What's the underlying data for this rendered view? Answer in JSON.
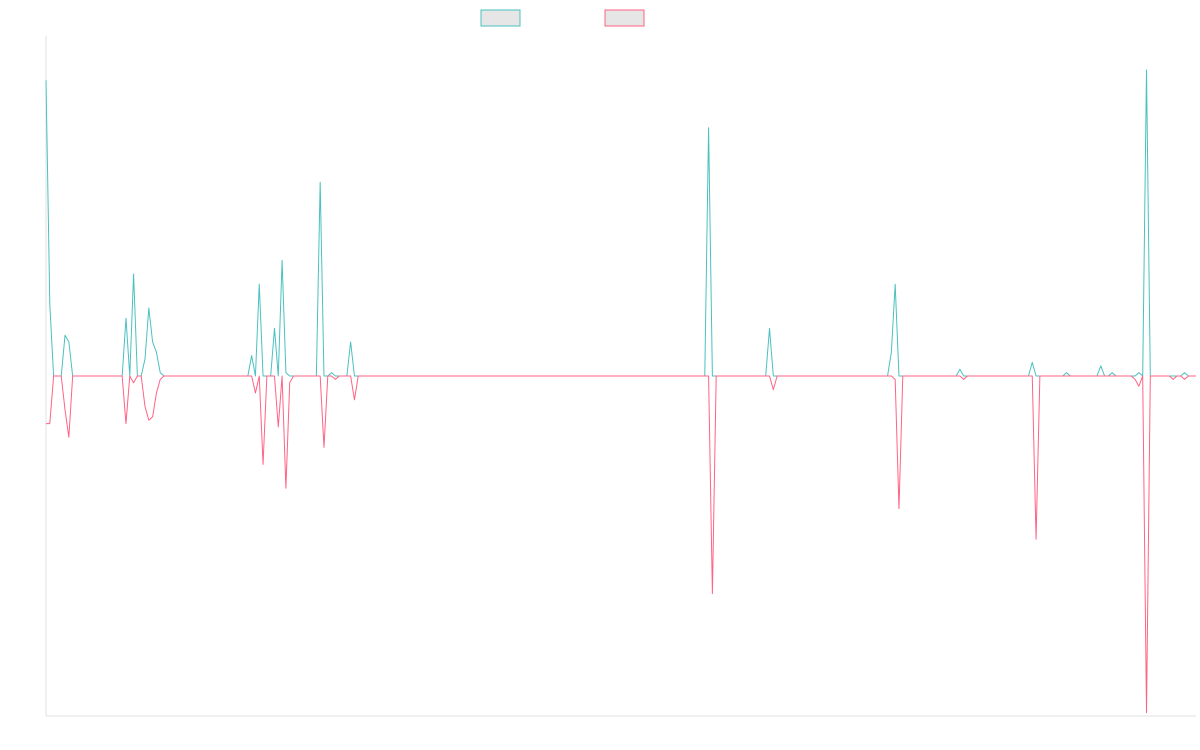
{
  "chart_data": {
    "type": "line",
    "title": "",
    "xlabel": "",
    "ylabel": "",
    "x_ticks_shown": false,
    "y_ticks_shown": false,
    "grid": false,
    "legend_position": "top-center",
    "ylim": [
      -1,
      1
    ],
    "series": [
      {
        "name": "",
        "color": "#4bc0c0",
        "fill": "#e6e6e6",
        "values": [
          0.87,
          0.21,
          0,
          0,
          0,
          0.12,
          0.1,
          0,
          0,
          0,
          0,
          0,
          0,
          0,
          0,
          0,
          0,
          0,
          0,
          0,
          0,
          0.17,
          0,
          0.3,
          0,
          0,
          0.05,
          0.2,
          0.1,
          0.07,
          0.01,
          0,
          0,
          0,
          0,
          0,
          0,
          0,
          0,
          0,
          0,
          0,
          0,
          0,
          0,
          0,
          0,
          0,
          0,
          0,
          0,
          0,
          0,
          0,
          0.06,
          0,
          0.27,
          0,
          0,
          0,
          0.14,
          0,
          0.34,
          0.01,
          0,
          0,
          0,
          0,
          0,
          0,
          0,
          0,
          0.57,
          0,
          0,
          0.01,
          0,
          0,
          0,
          0,
          0.1,
          0,
          0,
          0,
          0,
          0,
          0,
          0,
          0,
          0,
          0,
          0,
          0,
          0,
          0,
          0,
          0,
          0,
          0,
          0,
          0,
          0,
          0,
          0,
          0,
          0,
          0,
          0,
          0,
          0,
          0,
          0,
          0,
          0,
          0,
          0,
          0,
          0,
          0,
          0,
          0,
          0,
          0,
          0,
          0,
          0,
          0,
          0,
          0,
          0,
          0,
          0,
          0,
          0,
          0,
          0,
          0,
          0,
          0,
          0,
          0,
          0,
          0,
          0,
          0,
          0,
          0,
          0,
          0,
          0,
          0,
          0,
          0,
          0,
          0,
          0,
          0,
          0,
          0,
          0,
          0,
          0,
          0,
          0,
          0,
          0,
          0,
          0,
          0,
          0,
          0,
          0,
          0,
          0,
          0.73,
          0,
          0,
          0,
          0,
          0,
          0,
          0,
          0,
          0,
          0,
          0,
          0,
          0,
          0,
          0,
          0.14,
          0,
          0,
          0,
          0,
          0,
          0,
          0,
          0,
          0,
          0,
          0,
          0,
          0,
          0,
          0,
          0,
          0,
          0,
          0,
          0,
          0,
          0,
          0,
          0,
          0,
          0,
          0,
          0,
          0,
          0,
          0,
          0.07,
          0.27,
          0,
          0,
          0,
          0,
          0,
          0,
          0,
          0,
          0,
          0,
          0,
          0,
          0,
          0,
          0,
          0,
          0.02,
          0,
          0,
          0,
          0,
          0,
          0,
          0,
          0,
          0,
          0,
          0,
          0,
          0,
          0,
          0,
          0,
          0,
          0,
          0.04,
          0,
          0,
          0,
          0,
          0,
          0,
          0,
          0,
          0.01,
          0,
          0,
          0,
          0,
          0,
          0,
          0,
          0,
          0.03,
          0,
          0,
          0.01,
          0,
          0,
          0,
          0,
          0,
          0,
          0.01,
          0,
          0.9,
          0,
          0,
          0,
          0,
          0,
          0,
          0,
          0,
          0,
          0.01,
          0,
          0,
          0
        ]
      },
      {
        "name": "",
        "color": "#ff6384",
        "fill": "#e6e6e6",
        "values": [
          -0.14,
          -0.14,
          0,
          0,
          0,
          -0.1,
          -0.18,
          0,
          0,
          0,
          0,
          0,
          0,
          0,
          0,
          0,
          0,
          0,
          0,
          0,
          0,
          -0.14,
          0,
          -0.02,
          0,
          0,
          -0.09,
          -0.13,
          -0.12,
          -0.05,
          -0.01,
          0,
          0,
          0,
          0,
          0,
          0,
          0,
          0,
          0,
          0,
          0,
          0,
          0,
          0,
          0,
          0,
          0,
          0,
          0,
          0,
          0,
          0,
          0,
          0,
          -0.05,
          0,
          -0.26,
          0,
          0,
          0,
          -0.15,
          0,
          -0.33,
          -0.02,
          0,
          0,
          0,
          0,
          0,
          0,
          0,
          0,
          -0.21,
          0,
          0,
          -0.01,
          0,
          0,
          0,
          0,
          -0.07,
          0,
          0,
          0,
          0,
          0,
          0,
          0,
          0,
          0,
          0,
          0,
          0,
          0,
          0,
          0,
          0,
          0,
          0,
          0,
          0,
          0,
          0,
          0,
          0,
          0,
          0,
          0,
          0,
          0,
          0,
          0,
          0,
          0,
          0,
          0,
          0,
          0,
          0,
          0,
          0,
          0,
          0,
          0,
          0,
          0,
          0,
          0,
          0,
          0,
          0,
          0,
          0,
          0,
          0,
          0,
          0,
          0,
          0,
          0,
          0,
          0,
          0,
          0,
          0,
          0,
          0,
          0,
          0,
          0,
          0,
          0,
          0,
          0,
          0,
          0,
          0,
          0,
          0,
          0,
          0,
          0,
          0,
          0,
          0,
          0,
          0,
          0,
          0,
          0,
          0,
          0,
          0,
          0,
          -0.64,
          0,
          0,
          0,
          0,
          0,
          0,
          0,
          0,
          0,
          0,
          0,
          0,
          0,
          0,
          0,
          -0.04,
          0,
          0,
          0,
          0,
          0,
          0,
          0,
          0,
          0,
          0,
          0,
          0,
          0,
          0,
          0,
          0,
          0,
          0,
          0,
          0,
          0,
          0,
          0,
          0,
          0,
          0,
          0,
          0,
          0,
          0,
          0,
          -0.01,
          -0.39,
          0,
          0,
          0,
          0,
          0,
          0,
          0,
          0,
          0,
          0,
          0,
          0,
          0,
          0,
          0,
          0,
          -0.01,
          0,
          0,
          0,
          0,
          0,
          0,
          0,
          0,
          0,
          0,
          0,
          0,
          0,
          0,
          0,
          0,
          0,
          0,
          -0.48,
          0,
          0,
          0,
          0,
          0,
          0,
          0,
          0,
          0,
          0,
          0,
          0,
          0,
          0,
          0,
          0,
          0,
          0,
          0,
          0,
          0,
          0,
          0,
          0,
          0,
          -0.01,
          -0.03,
          0,
          -0.99,
          0,
          0,
          0,
          0,
          0,
          0,
          -0.01,
          0,
          0,
          -0.01,
          0,
          0,
          0
        ]
      }
    ]
  }
}
